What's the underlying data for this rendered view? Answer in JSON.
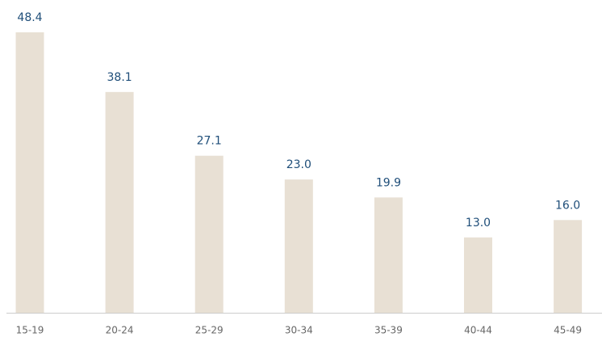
{
  "chart_data": {
    "type": "bar",
    "categories": [
      "15-19",
      "20-24",
      "25-29",
      "30-34",
      "35-39",
      "40-44",
      "45-49"
    ],
    "values": [
      48.4,
      38.1,
      27.1,
      23.0,
      19.9,
      13.0,
      16.0
    ],
    "value_labels": [
      "48.4",
      "38.1",
      "27.1",
      "23.0",
      "19.9",
      "13.0",
      "16.0"
    ],
    "color": "#e8e0d4"
  }
}
